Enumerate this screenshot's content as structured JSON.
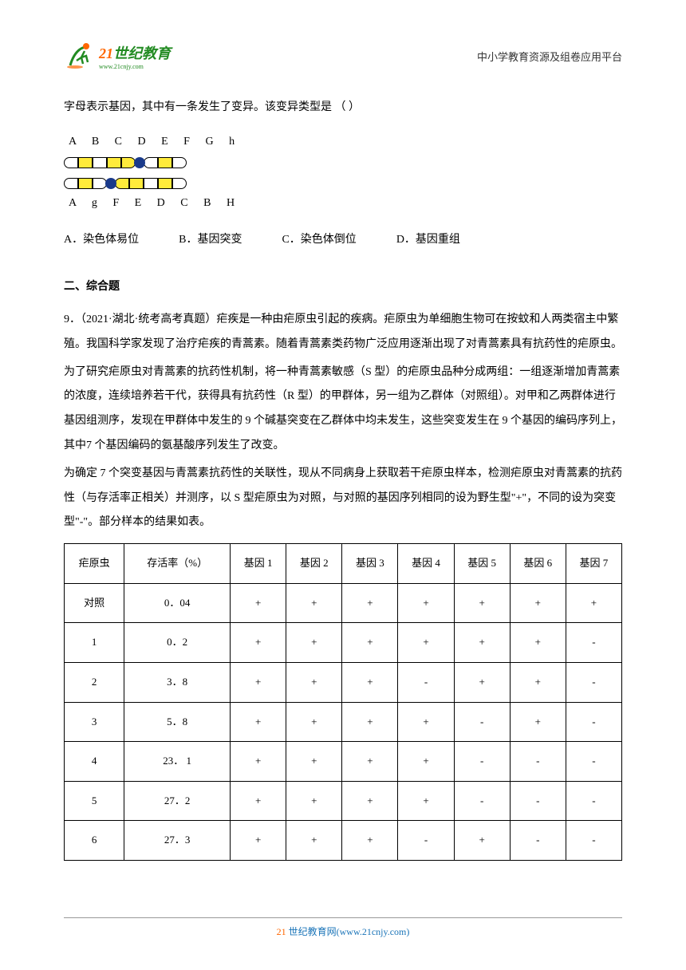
{
  "header": {
    "logo_num": "21",
    "logo_text": "世纪教育",
    "logo_url": "www.21cnjy.com",
    "right_text": "中小学教育资源及组卷应用平台"
  },
  "intro_line": "字母表示基因，其中有一条发生了变异。该变异类型是 （   ）",
  "chromosome": {
    "top_labels": "A  B  C   D  E        F  G  h",
    "bottom_labels": "A  g  F        E   D  C   B  H"
  },
  "options": {
    "a": "A．染色体易位",
    "b": "B．基因突变",
    "c": "C．染色体倒位",
    "d": "D．基因重组"
  },
  "section2_title": "二、综合题",
  "q9_source": "9．（2021·湖北·统考高考真题）疟疾是一种由疟原虫引起的疾病。疟原虫为单细胞生物可在按蚊和人两类宿主中繁殖。我国科学家发现了治疗疟疾的青蒿素。随着青蒿素类药物广泛应用逐渐出现了对青蒿素具有抗药性的疟原虫。",
  "q9_p2": "为了研究疟原虫对青蒿素的抗药性机制，将一种青蒿素敏感（S 型）的疟原虫品种分成两组：一组逐渐增加青蒿素的浓度，连续培养若干代，获得具有抗药性（R 型）的甲群体，另一组为乙群体（对照组）。对甲和乙两群体进行基因组测序，发现在甲群体中发生的 9 个碱基突变在乙群体中均未发生，这些突变发生在 9 个基因的编码序列上，其中7 个基因编码的氨基酸序列发生了改变。",
  "q9_p3": "为确定 7 个突变基因与青蒿素抗药性的关联性，现从不同病身上获取若干疟原虫样本，检测疟原虫对青蒿素的抗药性（与存活率正相关）并测序，以 S 型疟原虫为对照，与对照的基因序列相同的设为野生型\"+\"，不同的设为突变型\"-\"。部分样本的结果如表。",
  "table": {
    "headers": [
      "疟原虫",
      "存活率（%）",
      "基因 1",
      "基因 2",
      "基因 3",
      "基因 4",
      "基因 5",
      "基因 6",
      "基因 7"
    ],
    "rows": [
      [
        "对照",
        "0．04",
        "+",
        "+",
        "+",
        "+",
        "+",
        "+",
        "+"
      ],
      [
        "1",
        "0．2",
        "+",
        "+",
        "+",
        "+",
        "+",
        "+",
        "-"
      ],
      [
        "2",
        "3．8",
        "+",
        "+",
        "+",
        "-",
        "+",
        "+",
        "-"
      ],
      [
        "3",
        "5．8",
        "+",
        "+",
        "+",
        "+",
        "-",
        "+",
        "-"
      ],
      [
        "4",
        "23． 1",
        "+",
        "+",
        "+",
        "+",
        "-",
        "-",
        "-"
      ],
      [
        "5",
        "27．2",
        "+",
        "+",
        "+",
        "+",
        "-",
        "-",
        "-"
      ],
      [
        "6",
        "27．3",
        "+",
        "+",
        "+",
        "-",
        "+",
        "-",
        "-"
      ]
    ]
  },
  "footer": {
    "num": "21",
    "text": " 世纪教育网(www.21cnjy.com)"
  }
}
